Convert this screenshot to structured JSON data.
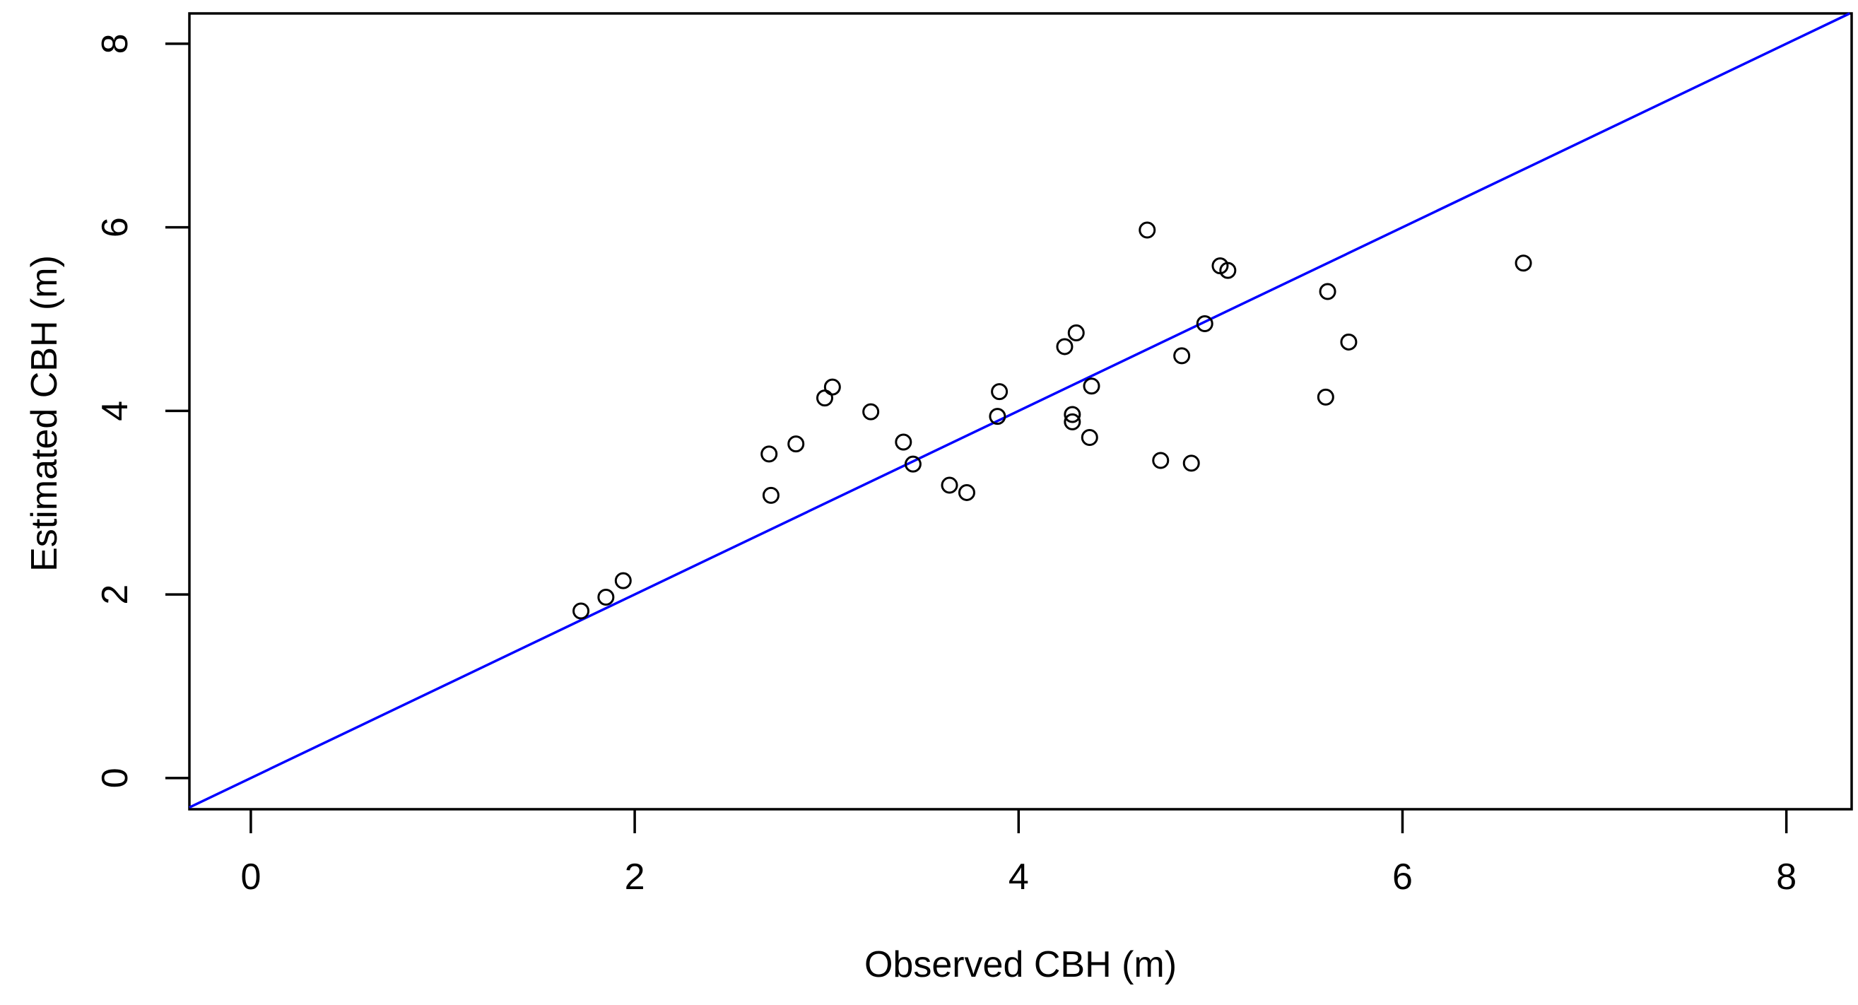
{
  "chart_data": {
    "type": "scatter",
    "title": "",
    "xlabel": "Observed CBH (m)",
    "ylabel": "Estimated CBH (m)",
    "xlim": [
      -0.32,
      8.34
    ],
    "ylim": [
      -0.34,
      8.33
    ],
    "xticks": [
      0,
      2,
      4,
      6,
      8
    ],
    "yticks": [
      0,
      2,
      4,
      6,
      8
    ],
    "grid": false,
    "legend": "none",
    "marker": {
      "shape": "open-circle",
      "stroke_color": "#000000",
      "fill": "none"
    },
    "reference_line": {
      "name": "1:1 identity line",
      "slope": 1,
      "intercept": 0,
      "color": "#0000FF"
    },
    "points": [
      [
        1.72,
        1.82
      ],
      [
        1.85,
        1.97
      ],
      [
        1.94,
        2.15
      ],
      [
        2.7,
        3.53
      ],
      [
        2.71,
        3.08
      ],
      [
        2.84,
        3.64
      ],
      [
        2.99,
        4.14
      ],
      [
        3.03,
        4.26
      ],
      [
        3.23,
        3.99
      ],
      [
        3.4,
        3.66
      ],
      [
        3.45,
        3.42
      ],
      [
        3.64,
        3.19
      ],
      [
        3.73,
        3.11
      ],
      [
        3.89,
        3.94
      ],
      [
        3.9,
        4.21
      ],
      [
        4.24,
        4.7
      ],
      [
        4.28,
        3.96
      ],
      [
        4.28,
        3.88
      ],
      [
        4.3,
        4.85
      ],
      [
        4.37,
        3.71
      ],
      [
        4.38,
        4.27
      ],
      [
        4.67,
        5.97
      ],
      [
        4.74,
        3.46
      ],
      [
        4.85,
        4.6
      ],
      [
        4.9,
        3.43
      ],
      [
        4.97,
        4.95
      ],
      [
        5.05,
        5.58
      ],
      [
        5.09,
        5.53
      ],
      [
        5.6,
        4.15
      ],
      [
        5.61,
        5.3
      ],
      [
        5.72,
        4.75
      ],
      [
        6.63,
        5.61
      ]
    ],
    "colors": {
      "axis": "#000000",
      "background": "#ffffff",
      "line": "#0000FF"
    }
  }
}
